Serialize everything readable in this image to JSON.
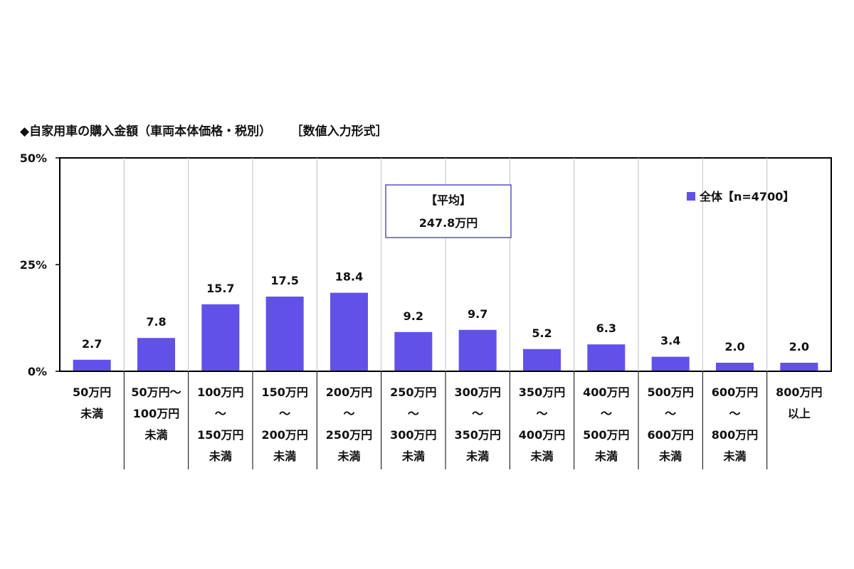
{
  "chart_data": {
    "type": "bar",
    "title": "◆自家用車の購入金額（車両本体価格・税別）",
    "subtitle": "［数値入力形式］",
    "categories": [
      [
        "50万円",
        "未満"
      ],
      [
        "50万円～",
        "100万円",
        "未満"
      ],
      [
        "100万円",
        "～",
        "150万円",
        "未満"
      ],
      [
        "150万円",
        "～",
        "200万円",
        "未満"
      ],
      [
        "200万円",
        "～",
        "250万円",
        "未満"
      ],
      [
        "250万円",
        "～",
        "300万円",
        "未満"
      ],
      [
        "300万円",
        "～",
        "350万円",
        "未満"
      ],
      [
        "350万円",
        "～",
        "400万円",
        "未満"
      ],
      [
        "400万円",
        "～",
        "500万円",
        "未満"
      ],
      [
        "500万円",
        "～",
        "600万円",
        "未満"
      ],
      [
        "600万円",
        "～",
        "800万円",
        "未満"
      ],
      [
        "800万円",
        "以上"
      ]
    ],
    "series": [
      {
        "name": "全体【n=4700】",
        "values": [
          2.7,
          7.8,
          15.7,
          17.5,
          18.4,
          9.2,
          9.7,
          5.2,
          6.3,
          3.4,
          2.0,
          2.0
        ],
        "labels": [
          "2.7",
          "7.8",
          "15.7",
          "17.5",
          "18.4",
          "9.2",
          "9.7",
          "5.2",
          "6.3",
          "3.4",
          "2.0",
          "2.0"
        ]
      }
    ],
    "ylim": [
      0,
      50
    ],
    "yticks": [
      0,
      25,
      50
    ],
    "ytick_labels": [
      "0%",
      "25%",
      "50%"
    ],
    "xlabel": "",
    "ylabel": "",
    "grid": false,
    "legend_position": "top-right",
    "annotation": {
      "line1": "【平均】",
      "line2": "247.8万円"
    },
    "colors": {
      "bar": "#6251e8",
      "annotation_border": "#5b4fd6",
      "axis": "#000000",
      "separator": "#bfbfbf"
    }
  }
}
